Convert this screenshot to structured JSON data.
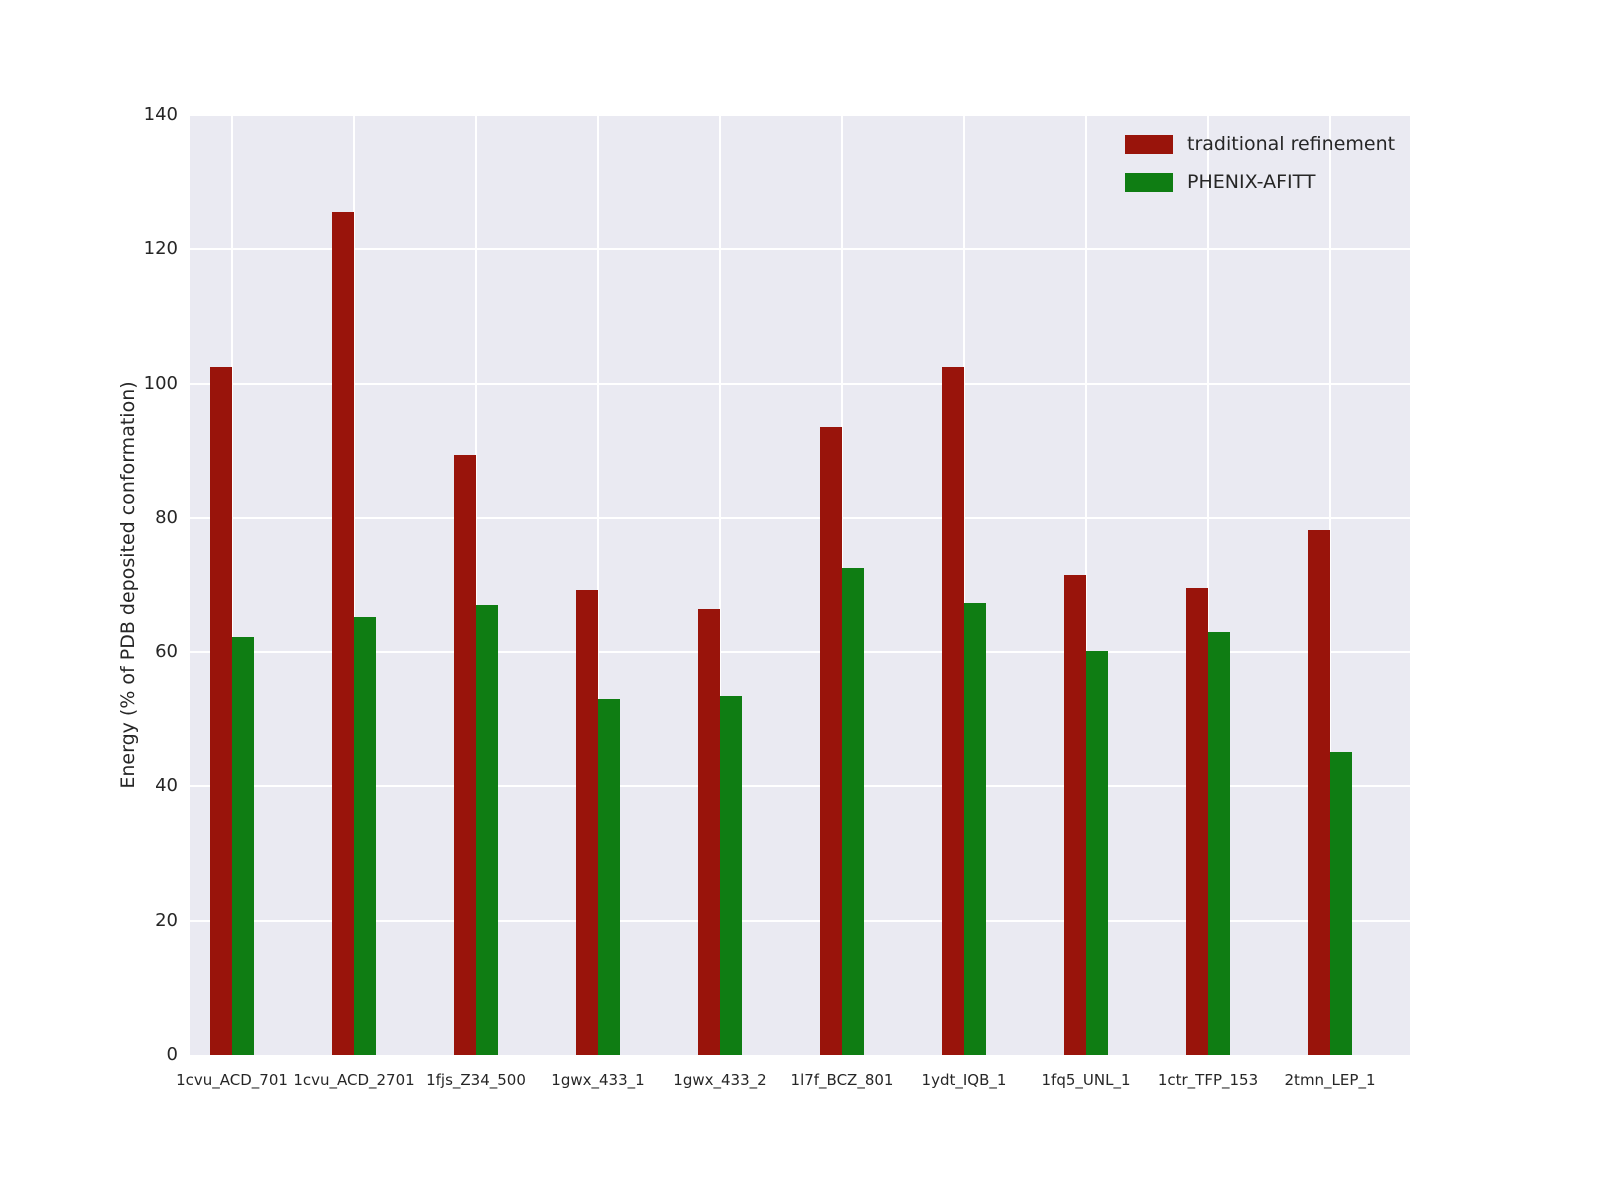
{
  "chart_data": {
    "type": "bar",
    "title": "",
    "xlabel": "",
    "ylabel": "Energy (% of PDB deposited conformation)",
    "ylim": [
      0,
      140
    ],
    "yticks": [
      0,
      20,
      40,
      60,
      80,
      100,
      120,
      140
    ],
    "grid": true,
    "legend_position": "upper right",
    "categories": [
      "1cvu_ACD_701",
      "1cvu_ACD_2701",
      "1fjs_Z34_500",
      "1gwx_433_1",
      "1gwx_433_2",
      "1l7f_BCZ_801",
      "1ydt_IQB_1",
      "1fq5_UNL_1",
      "1ctr_TFP_153",
      "2tmn_LEP_1"
    ],
    "series": [
      {
        "name": "traditional refinement",
        "color": "#99140b",
        "values": [
          102.5,
          125.5,
          89.3,
          69.2,
          66.5,
          93.5,
          102.5,
          71.5,
          69.5,
          78.2
        ]
      },
      {
        "name": "PHENIX-AFITT",
        "color": "#0f7d13",
        "values": [
          62.2,
          65.2,
          67.0,
          53.0,
          53.5,
          72.5,
          67.3,
          60.2,
          63.0,
          45.2
        ]
      }
    ]
  }
}
